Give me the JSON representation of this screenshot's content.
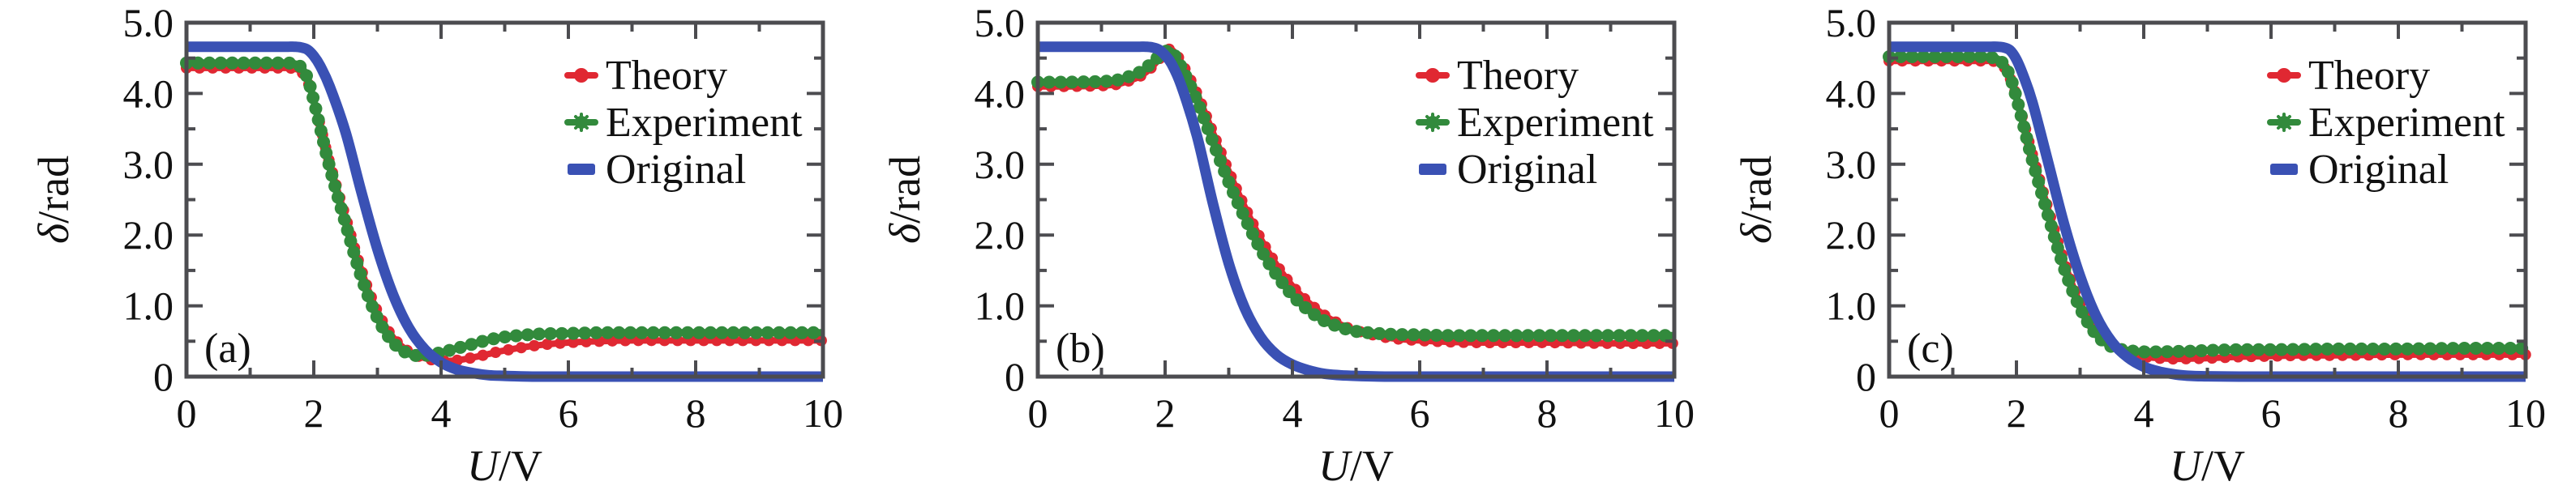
{
  "figure": {
    "background": "#ffffff",
    "axis_color": "#4c4c50",
    "text_color": "#111111",
    "legend_position": "top-right",
    "legend": [
      {
        "key": "theory",
        "label": "Theory",
        "color": "#e02832",
        "marker": "dash-dot"
      },
      {
        "key": "experiment",
        "label": "Experiment",
        "color": "#328a3c",
        "marker": "dash-star"
      },
      {
        "key": "original",
        "label": "Original",
        "color": "#3a51b4",
        "marker": "thick-dash"
      }
    ]
  },
  "chart_data": [
    {
      "type": "line",
      "panel_label": "(a)",
      "xlabel_italic": "U",
      "xlabel_rest": "/V",
      "ylabel_italic": "δ",
      "ylabel_rest": "/rad",
      "xlim": [
        0,
        10
      ],
      "ylim": [
        0,
        5
      ],
      "x_ticks": [
        0,
        2,
        4,
        6,
        8,
        10
      ],
      "x_tick_labels": [
        "0",
        "2",
        "4",
        "6",
        "8",
        "10"
      ],
      "x_minor_ticks": [
        1,
        3,
        5,
        7,
        9
      ],
      "y_ticks": [
        0,
        1,
        2,
        3,
        4,
        5
      ],
      "y_tick_labels": [
        "0",
        "1.0",
        "2.0",
        "3.0",
        "4.0",
        "5.0"
      ],
      "y_minor_ticks": [
        0.5,
        1.5,
        2.5,
        3.5,
        4.5
      ],
      "grid": false,
      "legend": [
        "Theory",
        "Experiment",
        "Original"
      ],
      "x": [
        0,
        0.5,
        1,
        1.25,
        1.5,
        1.6,
        1.7,
        1.8,
        1.9,
        2,
        2.1,
        2.25,
        2.5,
        2.75,
        3,
        3.25,
        3.5,
        3.75,
        4,
        4.25,
        4.5,
        4.75,
        5,
        5.5,
        6,
        6.5,
        7,
        8,
        9,
        10
      ],
      "series": [
        {
          "name": "Theory",
          "y": [
            4.36,
            4.36,
            4.36,
            4.36,
            4.36,
            4.36,
            4.35,
            4.31,
            4.18,
            3.9,
            3.55,
            3.02,
            2.25,
            1.5,
            0.92,
            0.55,
            0.35,
            0.26,
            0.22,
            0.23,
            0.27,
            0.32,
            0.37,
            0.44,
            0.48,
            0.5,
            0.51,
            0.51,
            0.51,
            0.51
          ]
        },
        {
          "name": "Experiment",
          "y": [
            4.43,
            4.43,
            4.43,
            4.43,
            4.43,
            4.43,
            4.42,
            4.37,
            4.22,
            3.9,
            3.52,
            2.96,
            2.16,
            1.4,
            0.83,
            0.48,
            0.32,
            0.3,
            0.34,
            0.4,
            0.46,
            0.52,
            0.56,
            0.6,
            0.61,
            0.62,
            0.62,
            0.62,
            0.62,
            0.62
          ]
        },
        {
          "name": "Original",
          "y": [
            4.66,
            4.66,
            4.66,
            4.66,
            4.66,
            4.66,
            4.66,
            4.65,
            4.62,
            4.53,
            4.39,
            4.1,
            3.45,
            2.6,
            1.8,
            1.15,
            0.68,
            0.38,
            0.2,
            0.1,
            0.05,
            0.02,
            0.01,
            0.0,
            0,
            0,
            0,
            0,
            0,
            0
          ]
        }
      ]
    },
    {
      "type": "line",
      "panel_label": "(b)",
      "xlabel_italic": "U",
      "xlabel_rest": "/V",
      "ylabel_italic": "δ",
      "ylabel_rest": "/rad",
      "xlim": [
        0,
        10
      ],
      "ylim": [
        0,
        5
      ],
      "x_ticks": [
        0,
        2,
        4,
        6,
        8,
        10
      ],
      "x_tick_labels": [
        "0",
        "2",
        "4",
        "6",
        "8",
        "10"
      ],
      "x_minor_ticks": [
        1,
        3,
        5,
        7,
        9
      ],
      "y_ticks": [
        0,
        1,
        2,
        3,
        4,
        5
      ],
      "y_tick_labels": [
        "0",
        "1.0",
        "2.0",
        "3.0",
        "4.0",
        "5.0"
      ],
      "y_minor_ticks": [
        0.5,
        1.5,
        2.5,
        3.5,
        4.5
      ],
      "grid": false,
      "legend": [
        "Theory",
        "Experiment",
        "Original"
      ],
      "x": [
        0,
        0.5,
        1,
        1.25,
        1.5,
        1.6,
        1.7,
        1.8,
        1.9,
        2,
        2.1,
        2.25,
        2.5,
        2.75,
        3,
        3.25,
        3.5,
        3.75,
        4,
        4.25,
        4.5,
        4.75,
        5,
        5.5,
        6,
        6.5,
        7,
        8,
        9,
        10
      ],
      "series": [
        {
          "name": "Theory",
          "y": [
            4.1,
            4.1,
            4.11,
            4.13,
            4.2,
            4.24,
            4.3,
            4.38,
            4.48,
            4.58,
            4.62,
            4.45,
            4.0,
            3.45,
            2.9,
            2.4,
            1.95,
            1.58,
            1.28,
            1.05,
            0.87,
            0.74,
            0.65,
            0.55,
            0.51,
            0.49,
            0.48,
            0.48,
            0.47,
            0.47
          ]
        },
        {
          "name": "Experiment",
          "y": [
            4.16,
            4.16,
            4.17,
            4.19,
            4.26,
            4.3,
            4.36,
            4.44,
            4.52,
            4.59,
            4.59,
            4.38,
            3.9,
            3.32,
            2.75,
            2.25,
            1.8,
            1.44,
            1.15,
            0.94,
            0.79,
            0.7,
            0.64,
            0.6,
            0.59,
            0.58,
            0.58,
            0.58,
            0.58,
            0.58
          ]
        },
        {
          "name": "Original",
          "y": [
            4.66,
            4.66,
            4.66,
            4.66,
            4.66,
            4.66,
            4.66,
            4.65,
            4.62,
            4.54,
            4.42,
            4.12,
            3.4,
            2.45,
            1.6,
            0.97,
            0.56,
            0.31,
            0.17,
            0.09,
            0.04,
            0.02,
            0.01,
            0.0,
            0,
            0,
            0,
            0,
            0,
            0
          ]
        }
      ]
    },
    {
      "type": "line",
      "panel_label": "(c)",
      "xlabel_italic": "U",
      "xlabel_rest": "/V",
      "ylabel_italic": "δ",
      "ylabel_rest": "/rad",
      "xlim": [
        0,
        10
      ],
      "ylim": [
        0,
        5
      ],
      "x_ticks": [
        0,
        2,
        4,
        6,
        8,
        10
      ],
      "x_tick_labels": [
        "0",
        "2",
        "4",
        "6",
        "8",
        "10"
      ],
      "x_minor_ticks": [
        1,
        3,
        5,
        7,
        9
      ],
      "y_ticks": [
        0,
        1,
        2,
        3,
        4,
        5
      ],
      "y_tick_labels": [
        "0",
        "1.0",
        "2.0",
        "3.0",
        "4.0",
        "5.0"
      ],
      "y_minor_ticks": [
        0.5,
        1.5,
        2.5,
        3.5,
        4.5
      ],
      "grid": false,
      "legend": [
        "Theory",
        "Experiment",
        "Original"
      ],
      "x": [
        0,
        0.5,
        1,
        1.25,
        1.5,
        1.6,
        1.7,
        1.8,
        1.9,
        2,
        2.1,
        2.25,
        2.5,
        2.75,
        3,
        3.25,
        3.5,
        3.75,
        4,
        4.25,
        4.5,
        4.75,
        5,
        5.5,
        6,
        6.5,
        7,
        8,
        9,
        10
      ],
      "series": [
        {
          "name": "Theory",
          "y": [
            4.46,
            4.46,
            4.46,
            4.46,
            4.46,
            4.46,
            4.44,
            4.38,
            4.22,
            3.96,
            3.64,
            3.14,
            2.36,
            1.62,
            1.04,
            0.64,
            0.43,
            0.32,
            0.28,
            0.26,
            0.25,
            0.255,
            0.26,
            0.28,
            0.29,
            0.3,
            0.3,
            0.31,
            0.31,
            0.31
          ]
        },
        {
          "name": "Experiment",
          "y": [
            4.52,
            4.52,
            4.52,
            4.52,
            4.52,
            4.51,
            4.49,
            4.41,
            4.24,
            3.94,
            3.59,
            3.06,
            2.27,
            1.53,
            0.97,
            0.6,
            0.42,
            0.37,
            0.35,
            0.35,
            0.355,
            0.36,
            0.37,
            0.38,
            0.38,
            0.385,
            0.39,
            0.39,
            0.4,
            0.4
          ]
        },
        {
          "name": "Original",
          "y": [
            4.66,
            4.66,
            4.66,
            4.66,
            4.66,
            4.66,
            4.66,
            4.65,
            4.61,
            4.48,
            4.27,
            3.88,
            3.02,
            2.15,
            1.42,
            0.86,
            0.49,
            0.27,
            0.14,
            0.07,
            0.03,
            0.01,
            0.005,
            0,
            0,
            0,
            0,
            0,
            0,
            0
          ]
        }
      ]
    }
  ]
}
